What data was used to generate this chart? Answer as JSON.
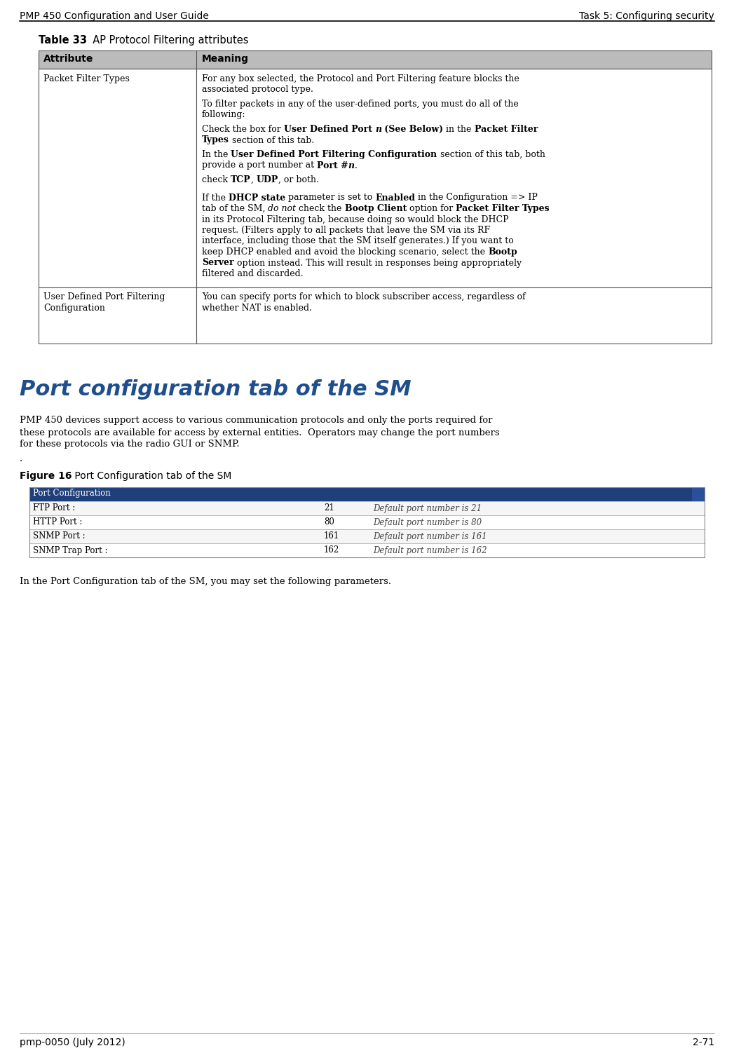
{
  "header_left": "PMP 450 Configuration and User Guide",
  "header_right": "Task 5: Configuring security",
  "footer_left": "pmp-0050 (July 2012)",
  "footer_right": "2-71",
  "table_title_bold": "Table 33",
  "table_title_rest": "  AP Protocol Filtering attributes",
  "col1_header": "Attribute",
  "col2_header": "Meaning",
  "row1_col1": "Packet Filter Types",
  "row2_col1_line1": "User Defined Port Filtering",
  "row2_col1_line2": "Configuration",
  "row2_col2": "You can specify ports for which to block subscriber access, regardless of whether NAT is enabled.",
  "section_title": "Port configuration tab of the SM",
  "section_title_color": "#1f4e8c",
  "body_lines": [
    "PMP 450 devices support access to various communication protocols and only the ports required for",
    "these protocols are available for access by external entities.  Operators may change the port numbers",
    "for these protocols via the radio GUI or SNMP."
  ],
  "figure_label_bold": "Figure 16",
  "figure_label_rest": " Port Configuration tab of the SM",
  "port_config_title": "Port Configuration",
  "port_config_header_bg": "#1f3f7a",
  "port_rows": [
    {
      "label": "FTP Port :",
      "value": "21",
      "default": "Default port number is 21"
    },
    {
      "label": "HTTP Port :",
      "value": "80",
      "default": "Default port number is 80"
    },
    {
      "label": "SNMP Port :",
      "value": "161",
      "default": "Default port number is 161"
    },
    {
      "label": "SNMP Trap Port :",
      "value": "162",
      "default": "Default port number is 162"
    }
  ],
  "final_text": "In the Port Configuration tab of the SM, you may set the following parameters.",
  "row_header_bg": "#bbbbbb",
  "port_row_bg_even": "#f5f5f5",
  "port_row_bg_odd": "#ffffff",
  "port_border_color": "#aaaaaa",
  "table_border_color": "#555555"
}
